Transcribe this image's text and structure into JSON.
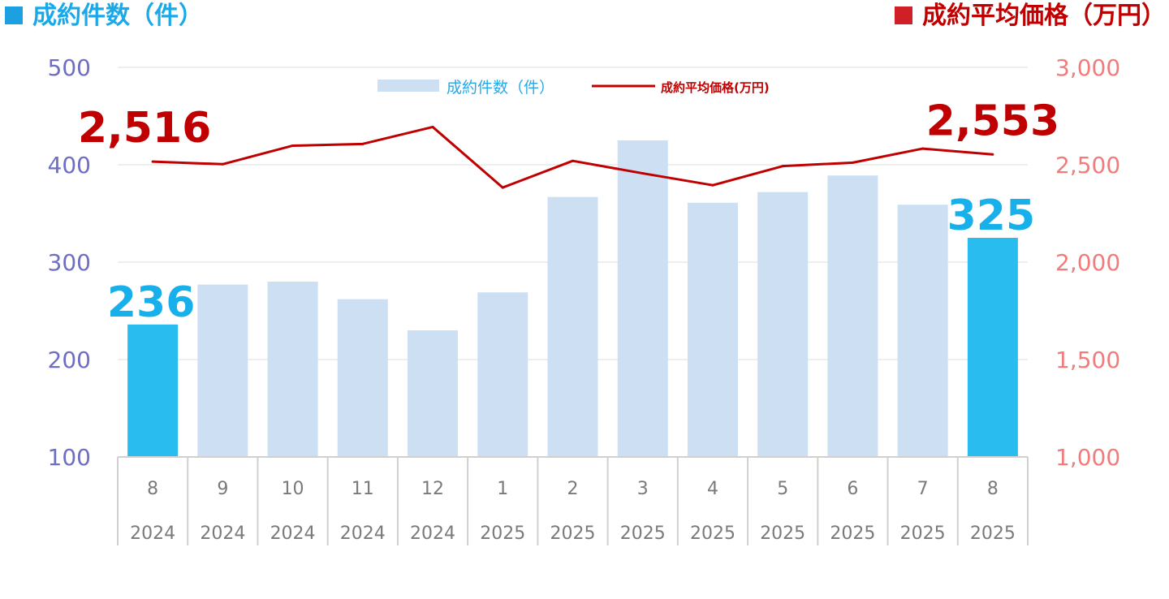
{
  "header": {
    "left_title": "成約件数（件）",
    "right_title": "成約平均価格（万円）"
  },
  "colors": {
    "bar_normal": "#cddff3",
    "bar_highlight": "#29bcef",
    "line": "#c00000",
    "left_axis_text": "#6e6ec4",
    "right_axis_text": "#f27b7b",
    "highlight_label_blue": "#18b0ea",
    "highlight_label_red": "#c00000",
    "grid": "#dddddd",
    "category_text": "#7a7a7a"
  },
  "chart_data": {
    "type": "bar",
    "categories": [
      "8",
      "9",
      "10",
      "11",
      "12",
      "1",
      "2",
      "3",
      "4",
      "5",
      "6",
      "7",
      "8"
    ],
    "years": [
      "2024",
      "2024",
      "2024",
      "2024",
      "2024",
      "2025",
      "2025",
      "2025",
      "2025",
      "2025",
      "2025",
      "2025",
      "2025"
    ],
    "series": [
      {
        "name": "成約件数（件）",
        "type": "bar",
        "axis": "left",
        "values": [
          236,
          277,
          280,
          262,
          230,
          269,
          367,
          425,
          361,
          372,
          389,
          359,
          325
        ],
        "highlight_indices": [
          0,
          12
        ]
      },
      {
        "name": "成約平均価格(万円)",
        "type": "line",
        "axis": "right",
        "values": [
          2516,
          2503,
          2598,
          2607,
          2694,
          2383,
          2520,
          2456,
          2395,
          2493,
          2511,
          2583,
          2553
        ]
      }
    ],
    "left_axis": {
      "ylim": [
        100,
        500
      ],
      "ticks": [
        "100",
        "200",
        "300",
        "400",
        "500"
      ]
    },
    "right_axis": {
      "ylim": [
        1000,
        3000
      ],
      "ticks": [
        "1,000",
        "1,500",
        "2,000",
        "2,500",
        "3,000"
      ]
    },
    "annotations": [
      {
        "series": 0,
        "index": 0,
        "text": "236"
      },
      {
        "series": 0,
        "index": 12,
        "text": "325"
      },
      {
        "series": 1,
        "index": 0,
        "text": "2,516"
      },
      {
        "series": 1,
        "index": 12,
        "text": "2,553"
      }
    ],
    "legend": {
      "position": "top-center"
    },
    "grid": true
  }
}
